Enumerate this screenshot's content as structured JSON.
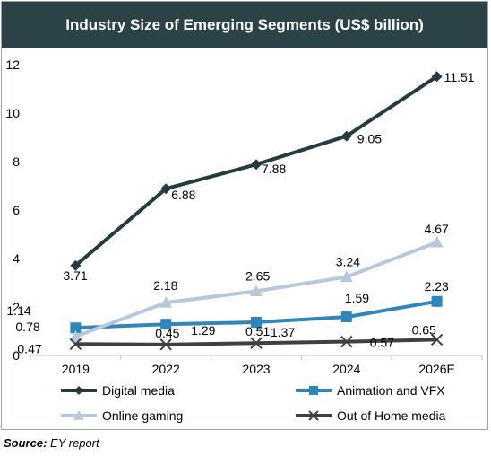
{
  "chart_data": {
    "type": "line",
    "title": "Industry Size of Emerging Segments (US$ billion)",
    "categories": [
      "2019",
      "2022",
      "2023",
      "2024",
      "2026E"
    ],
    "ylim": [
      0,
      12
    ],
    "yticks": [
      0,
      2,
      4,
      6,
      8,
      10,
      12
    ],
    "grid": false,
    "legend_position": "bottom",
    "series": [
      {
        "name": "Digital media",
        "values": [
          3.71,
          6.88,
          7.88,
          9.05,
          11.51
        ],
        "labels": [
          "3.71",
          "6.88",
          "7.88",
          "9.05",
          "11.51"
        ],
        "color": "#243c3f",
        "marker": "diamond"
      },
      {
        "name": "Animation and VFX",
        "values": [
          1.14,
          1.29,
          1.37,
          1.59,
          2.23
        ],
        "labels": [
          "1.14",
          "1.29",
          "1.37",
          "1.59",
          "2.23"
        ],
        "color": "#2e86c1",
        "marker": "square"
      },
      {
        "name": "Online gaming",
        "values": [
          0.78,
          2.18,
          2.65,
          3.24,
          4.67
        ],
        "labels": [
          "0.78",
          "2.18",
          "2.65",
          "3.24",
          "4.67"
        ],
        "color": "#b8c8dc",
        "marker": "triangle"
      },
      {
        "name": "Out of Home media",
        "values": [
          0.47,
          0.45,
          0.51,
          0.57,
          0.65
        ],
        "labels": [
          "0.47",
          "0.45",
          "0.51",
          "0.57",
          "0.65"
        ],
        "color": "#404040",
        "marker": "x"
      }
    ]
  },
  "source": {
    "label": "Source:",
    "text": "EY report"
  }
}
